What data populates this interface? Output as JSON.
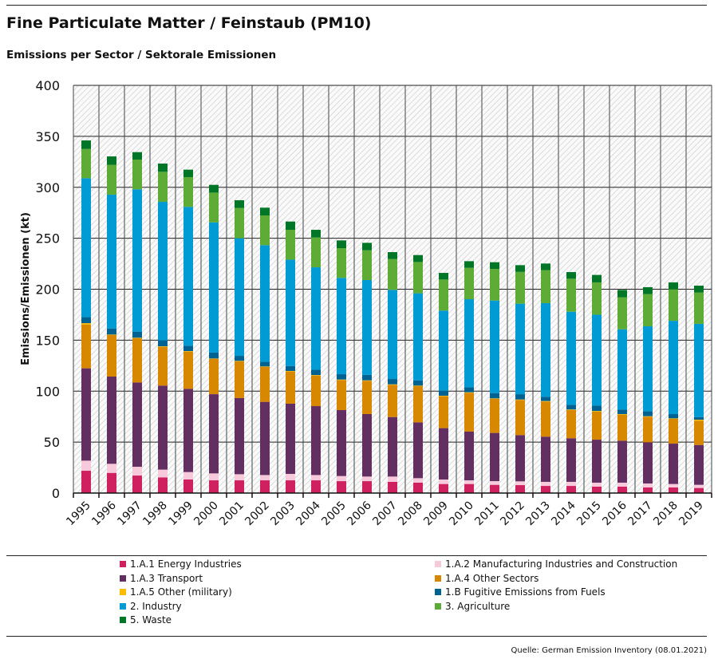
{
  "title": "Fine Particulate Matter / Feinstaub (PM10)",
  "subtitle": "Emissions per Sector / Sektorale Emissionen",
  "source": "Quelle: German Emission Inventory (08.01.2021)",
  "chart_data": {
    "type": "bar",
    "stacked": true,
    "ylabel": "Emissions/Emissionen (kt)",
    "xlabel": "",
    "ylim": [
      0,
      400
    ],
    "yticks": [
      0,
      50,
      100,
      150,
      200,
      250,
      300,
      350,
      400
    ],
    "grid": true,
    "legend_position": "bottom",
    "categories": [
      "1995",
      "1996",
      "1997",
      "1998",
      "1999",
      "2000",
      "2001",
      "2002",
      "2003",
      "2004",
      "2005",
      "2006",
      "2007",
      "2008",
      "2009",
      "2010",
      "2011",
      "2012",
      "2013",
      "2014",
      "2015",
      "2016",
      "2017",
      "2018",
      "2019"
    ],
    "series": [
      {
        "name": "1.A.1 Energy Industries",
        "color": "#cf2060",
        "values": [
          21.9,
          19.8,
          17.2,
          15.4,
          13.3,
          12.5,
          12.5,
          12.5,
          12.5,
          12.5,
          11.7,
          11.7,
          11.0,
          10.2,
          8.9,
          8.9,
          8.1,
          7.8,
          7.0,
          7.0,
          6.3,
          6.3,
          5.5,
          5.5,
          5.0
        ]
      },
      {
        "name": "1.A.2 Manufacturing Industries and Construction",
        "color": "#f6cadb",
        "values": [
          9.9,
          8.9,
          8.6,
          7.6,
          7.3,
          6.8,
          6.0,
          5.2,
          6.3,
          5.2,
          5.0,
          4.5,
          5.2,
          4.4,
          4.4,
          3.6,
          3.6,
          3.7,
          4.0,
          4.0,
          3.9,
          3.9,
          3.9,
          3.4,
          3.1
        ]
      },
      {
        "name": "1.A.3 Transport",
        "color": "#622f63",
        "values": [
          90.6,
          85.6,
          82.7,
          82.4,
          81.7,
          77.7,
          74.7,
          71.8,
          68.9,
          67.6,
          64.7,
          61.3,
          58.4,
          54.8,
          50.4,
          47.8,
          47.3,
          45.4,
          44.3,
          42.8,
          42.2,
          41.2,
          40.4,
          39.6,
          39.1
        ]
      },
      {
        "name": "1.A.4 Other Sectors",
        "color": "#d78700",
        "values": [
          43.0,
          40.7,
          43.4,
          38.1,
          36.5,
          34.5,
          36.0,
          34.2,
          31.6,
          30.0,
          29.5,
          32.6,
          31.6,
          35.5,
          31.3,
          38.1,
          33.4,
          34.4,
          34.5,
          27.7,
          27.7,
          25.6,
          25.1,
          24.3,
          23.8
        ]
      },
      {
        "name": "1.A.5 Other (military)",
        "color": "#fabb00",
        "values": [
          1.3,
          0.5,
          0.5,
          0.5,
          0.5,
          0.5,
          0.5,
          0.5,
          0.5,
          0.5,
          0.5,
          0.5,
          0.5,
          0.5,
          0.5,
          0.5,
          0.5,
          0.5,
          0.5,
          0.5,
          0.5,
          0.5,
          0.5,
          0.5,
          1.0
        ]
      },
      {
        "name": "1.B Fugitive Emissions from Fuels",
        "color": "#006290",
        "values": [
          6.0,
          6.0,
          6.0,
          5.8,
          5.3,
          5.8,
          4.9,
          4.7,
          4.9,
          5.2,
          5.2,
          5.3,
          5.2,
          5.2,
          5.2,
          4.9,
          5.2,
          5.2,
          4.2,
          4.6,
          5.2,
          4.4,
          5.0,
          4.2,
          2.6
        ]
      },
      {
        "name": "2. Industry",
        "color": "#009bd5",
        "values": [
          136.2,
          131.3,
          139.6,
          135.9,
          136.2,
          127.8,
          115.4,
          114.3,
          104.3,
          100.5,
          94.5,
          93.1,
          87.5,
          85.4,
          78.3,
          86.4,
          90.8,
          88.8,
          91.8,
          91.3,
          89.2,
          78.8,
          83.2,
          91.5,
          91.4
        ]
      },
      {
        "name": "3. Agriculture",
        "color": "#5eab35",
        "values": [
          28.7,
          29.2,
          29.2,
          29.5,
          29.2,
          29.2,
          29.7,
          29.2,
          29.3,
          29.2,
          29.2,
          29.2,
          30.2,
          30.7,
          30.5,
          30.8,
          31.0,
          31.2,
          32.4,
          32.4,
          31.7,
          31.3,
          31.6,
          30.9,
          30.7
        ]
      },
      {
        "name": "5. Waste",
        "color": "#007626",
        "values": [
          8.4,
          8.3,
          7.3,
          8.1,
          7.3,
          7.6,
          7.6,
          7.6,
          8.1,
          7.6,
          7.6,
          7.3,
          6.8,
          6.8,
          6.5,
          6.5,
          6.6,
          6.6,
          6.5,
          6.5,
          7.3,
          7.3,
          6.8,
          6.8,
          6.8
        ]
      }
    ]
  }
}
